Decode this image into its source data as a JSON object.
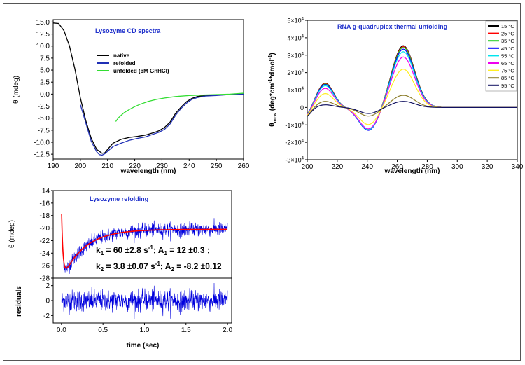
{
  "chart_data": [
    {
      "type": "line",
      "title": "Lysozyme CD spectra",
      "xlabel": "wavelength (nm)",
      "ylabel": "θ (mdeg)",
      "xlim": [
        190,
        260
      ],
      "ylim": [
        -13.5,
        15.5
      ],
      "xticks": [
        190,
        200,
        210,
        220,
        230,
        240,
        250,
        260
      ],
      "yticks": [
        15.0,
        12.5,
        10.0,
        7.5,
        5.0,
        2.5,
        0.0,
        -2.5,
        -5.0,
        -7.5,
        -10.0,
        -12.5
      ],
      "series": [
        {
          "name": "native",
          "color": "#000000",
          "points": [
            [
              190,
              14.8
            ],
            [
              192,
              14.7
            ],
            [
              194,
              13.2
            ],
            [
              196,
              10
            ],
            [
              198,
              5.2
            ],
            [
              200,
              -0.8
            ],
            [
              202,
              -5.5
            ],
            [
              204,
              -9.2
            ],
            [
              206,
              -11.5
            ],
            [
              208,
              -12.3
            ],
            [
              209,
              -12.2
            ],
            [
              210,
              -11.5
            ],
            [
              212,
              -10.2
            ],
            [
              215,
              -9.4
            ],
            [
              218,
              -9.0
            ],
            [
              221,
              -8.8
            ],
            [
              224,
              -8.5
            ],
            [
              227,
              -8.0
            ],
            [
              229,
              -7.6
            ],
            [
              231,
              -6.9
            ],
            [
              233,
              -5.8
            ],
            [
              235,
              -4.0
            ],
            [
              237,
              -2.7
            ],
            [
              239,
              -1.6
            ],
            [
              241,
              -0.9
            ],
            [
              243,
              -0.5
            ],
            [
              246,
              -0.3
            ],
            [
              250,
              -0.2
            ],
            [
              255,
              -0.1
            ],
            [
              260,
              0.0
            ]
          ]
        },
        {
          "name": "refolded",
          "color": "#1f2fb5",
          "points": [
            [
              200,
              -2.2
            ],
            [
              202,
              -6.0
            ],
            [
              204,
              -9.8
            ],
            [
              206,
              -12.0
            ],
            [
              207,
              -12.6
            ],
            [
              208,
              -12.7
            ],
            [
              209,
              -12.4
            ],
            [
              210,
              -11.9
            ],
            [
              212,
              -10.9
            ],
            [
              215,
              -10.2
            ],
            [
              218,
              -9.6
            ],
            [
              221,
              -9.2
            ],
            [
              224,
              -8.9
            ],
            [
              227,
              -8.3
            ],
            [
              229,
              -7.9
            ],
            [
              231,
              -7.3
            ],
            [
              233,
              -6.2
            ],
            [
              235,
              -4.4
            ],
            [
              237,
              -3.0
            ],
            [
              239,
              -1.9
            ],
            [
              241,
              -1.1
            ],
            [
              243,
              -0.7
            ],
            [
              246,
              -0.4
            ],
            [
              250,
              -0.3
            ],
            [
              255,
              -0.1
            ],
            [
              260,
              0.0
            ]
          ]
        },
        {
          "name": "unfolded (6M GnHCl)",
          "color": "#33dd33",
          "points": [
            [
              213,
              -5.7
            ],
            [
              214,
              -4.9
            ],
            [
              216,
              -3.9
            ],
            [
              218,
              -3.2
            ],
            [
              220,
              -2.6
            ],
            [
              222,
              -2.1
            ],
            [
              225,
              -1.5
            ],
            [
              228,
              -1.1
            ],
            [
              231,
              -0.8
            ],
            [
              235,
              -0.5
            ],
            [
              240,
              -0.3
            ],
            [
              245,
              -0.2
            ],
            [
              250,
              -0.1
            ],
            [
              255,
              0.0
            ],
            [
              260,
              0.2
            ]
          ]
        }
      ]
    },
    {
      "type": "line",
      "title": "RNA g-quadruplex thermal unfolding",
      "xlabel": "wavelength (nm)",
      "ylabel_main": "θ",
      "ylabel_sub": "mrw",
      "ylabel_rest": " (deg*cm",
      "ylabel_exp1": "-1",
      "ylabel_mid": "*dmol",
      "ylabel_exp2": "-1",
      "ylabel_end": ")",
      "xlim": [
        200,
        340
      ],
      "ylim": [
        -30000,
        50000
      ],
      "xticks": [
        200,
        220,
        240,
        260,
        280,
        300,
        320,
        340
      ],
      "yticks": [
        {
          "value": 50000,
          "mant": "5×10",
          "exp": "4"
        },
        {
          "value": 40000,
          "mant": "4×10",
          "exp": "4"
        },
        {
          "value": 30000,
          "mant": "3×10",
          "exp": "4"
        },
        {
          "value": 20000,
          "mant": "2×10",
          "exp": "4"
        },
        {
          "value": 10000,
          "mant": "1×10",
          "exp": "4"
        },
        {
          "value": 0,
          "mant": "0",
          "exp": ""
        },
        {
          "value": -10000,
          "mant": "-1×10",
          "exp": "4"
        },
        {
          "value": -20000,
          "mant": "-2×10",
          "exp": "4"
        },
        {
          "value": -30000,
          "mant": "-3×10",
          "exp": "4"
        }
      ],
      "series": [
        {
          "name": "15",
          "unit": "°C",
          "color": "#000000",
          "p1": 14000,
          "t": -13000,
          "p2": 35500
        },
        {
          "name": "25",
          "unit": "°C",
          "color": "#ff0000",
          "p1": 13800,
          "t": -13000,
          "p2": 35000
        },
        {
          "name": "35",
          "unit": "°C",
          "color": "#22cc22",
          "p1": 13500,
          "t": -13200,
          "p2": 34500
        },
        {
          "name": "45",
          "unit": "°C",
          "color": "#0000ff",
          "p1": 13200,
          "t": -13400,
          "p2": 33500
        },
        {
          "name": "55",
          "unit": "°C",
          "color": "#00e5ee",
          "p1": 12500,
          "t": -13000,
          "p2": 32000
        },
        {
          "name": "65",
          "unit": "°C",
          "color": "#ee00ee",
          "p1": 11000,
          "t": -12500,
          "p2": 29000
        },
        {
          "name": "75",
          "unit": "°C",
          "color": "#ffee22",
          "p1": 8000,
          "t": -10000,
          "p2": 22000
        },
        {
          "name": "85",
          "unit": "°C",
          "color": "#8b7d2a",
          "p1": 3500,
          "t": -5000,
          "p2": 7000
        },
        {
          "name": "95",
          "unit": "°C",
          "color": "#101060",
          "p1": 1500,
          "t": -3500,
          "p2": 3500
        }
      ]
    },
    {
      "type": "line",
      "title": "Lysozyme refolding",
      "ylabel": "θ (mdeg)",
      "xlim": [
        -0.1,
        2.05
      ],
      "ylim": [
        -28,
        -14
      ],
      "yticks": [
        -14,
        -16,
        -18,
        -20,
        -22,
        -24,
        -26,
        -28
      ],
      "fit": {
        "y_inf": -20.2,
        "a1": 12,
        "k1": 60,
        "a2": -8.2,
        "k2": 3.8
      },
      "noise_sd": 0.55,
      "data_color": "#0000dd",
      "fit_color": "#ff0000",
      "annotation_line1": {
        "k": "k",
        "k_sub": "1",
        "k_val": " = 60 ±2.8 s",
        "k_exp": "-1",
        "a": "; A",
        "a_sub": "1",
        "a_val": " = 12 ±0.3 ;"
      },
      "annotation_line2": {
        "k": "k",
        "k_sub": "2",
        "k_val": " = 3.8 ±0.07 s",
        "k_exp": "-1",
        "a": "; A",
        "a_sub": "2",
        "a_val": " = -8.2 ±0.12"
      }
    },
    {
      "type": "line",
      "title": "",
      "xlabel": "time (sec)",
      "ylabel": "residuals",
      "xlim": [
        -0.1,
        2.05
      ],
      "ylim": [
        -3,
        3
      ],
      "xticks": [
        0.0,
        0.5,
        1.0,
        1.5,
        2.0
      ],
      "yticks": [
        2,
        0,
        -2
      ],
      "color": "#0000dd"
    }
  ]
}
